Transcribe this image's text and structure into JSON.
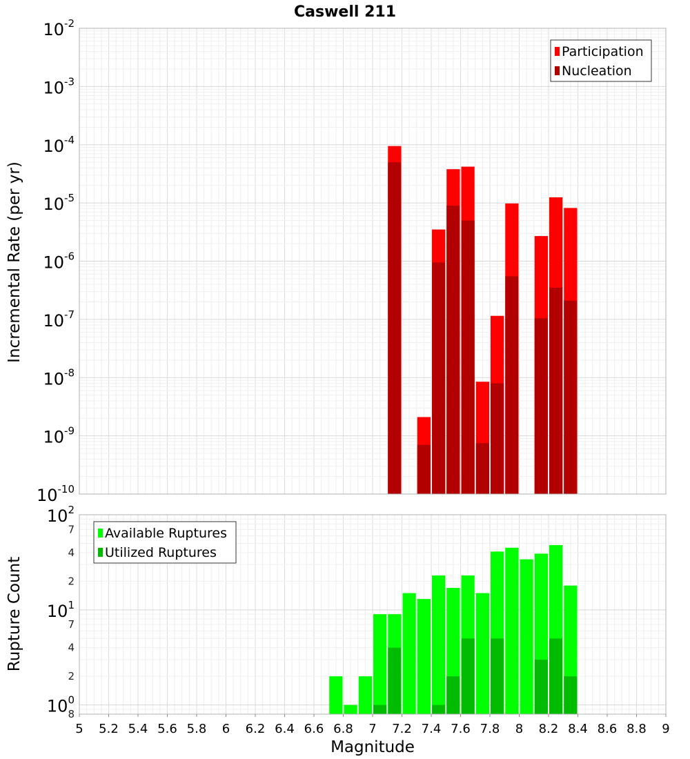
{
  "chart_data": {
    "title": "Caswell 211",
    "xlabel": "Magnitude",
    "xlim": [
      5,
      9
    ],
    "x_ticks": [
      "5",
      "5.2",
      "5.4",
      "5.6",
      "5.8",
      "6",
      "6.2",
      "6.4",
      "6.6",
      "6.8",
      "7",
      "7.2",
      "7.4",
      "7.6",
      "7.8",
      "8",
      "8.2",
      "8.4",
      "8.6",
      "8.8",
      "9"
    ],
    "bin_width": 0.1,
    "grid": true,
    "panels": [
      {
        "type": "bar",
        "ylabel": "Incremental Rate (per yr)",
        "yscale": "log",
        "ylim": [
          1e-10,
          0.01
        ],
        "y_ticks": [
          {
            "value": 1e-10,
            "base": "10",
            "exp": "-10"
          },
          {
            "value": 1e-09,
            "base": "10",
            "exp": "-9"
          },
          {
            "value": 1e-08,
            "base": "10",
            "exp": "-8"
          },
          {
            "value": 1e-07,
            "base": "10",
            "exp": "-7"
          },
          {
            "value": 1e-06,
            "base": "10",
            "exp": "-6"
          },
          {
            "value": 1e-05,
            "base": "10",
            "exp": "-5"
          },
          {
            "value": 0.0001,
            "base": "10",
            "exp": "-4"
          },
          {
            "value": 0.001,
            "base": "10",
            "exp": "-3"
          },
          {
            "value": 0.01,
            "base": "10",
            "exp": "-2"
          }
        ],
        "y_minor_ticks": [],
        "legend_position": "top-right",
        "series": [
          {
            "name": "Participation",
            "color": "#ff0000",
            "x": [
              7.15,
              7.35,
              7.45,
              7.55,
              7.65,
              7.75,
              7.85,
              7.95,
              8.15,
              8.25,
              8.35
            ],
            "values": [
              9.5e-05,
              2.1e-09,
              3.5e-06,
              3.8e-05,
              4.2e-05,
              8.5e-09,
              1.15e-07,
              9.8e-06,
              2.7e-06,
              1.25e-05,
              8.2e-06
            ]
          },
          {
            "name": "Nucleation",
            "color": "#b20000",
            "x": [
              7.15,
              7.35,
              7.45,
              7.55,
              7.65,
              7.75,
              7.85,
              7.95,
              8.15,
              8.25,
              8.35
            ],
            "values": [
              5e-05,
              7e-10,
              9.5e-07,
              9e-06,
              5e-06,
              7.5e-10,
              8e-09,
              5.5e-07,
              1.05e-07,
              3.5e-07,
              2.1e-07
            ]
          }
        ]
      },
      {
        "type": "bar",
        "ylabel": "Rupture Count",
        "yscale": "log",
        "ylim": [
          0.8,
          100
        ],
        "y_ticks": [
          {
            "value": 1,
            "base": "10",
            "exp": "0"
          },
          {
            "value": 10,
            "base": "10",
            "exp": "1"
          },
          {
            "value": 100,
            "base": "10",
            "exp": "2"
          }
        ],
        "y_minor_ticks": [
          {
            "value": 0.8,
            "label": "8"
          },
          {
            "value": 2,
            "label": "2"
          },
          {
            "value": 4,
            "label": "4"
          },
          {
            "value": 7,
            "label": "7"
          },
          {
            "value": 20,
            "label": "2"
          },
          {
            "value": 40,
            "label": "4"
          },
          {
            "value": 70,
            "label": "7"
          }
        ],
        "legend_position": "top-left",
        "series": [
          {
            "name": "Available Ruptures",
            "color": "#00ff00",
            "x": [
              6.75,
              6.85,
              6.95,
              7.05,
              7.15,
              7.25,
              7.35,
              7.45,
              7.55,
              7.65,
              7.75,
              7.85,
              7.95,
              8.05,
              8.15,
              8.25,
              8.35
            ],
            "values": [
              2,
              1,
              2,
              9,
              9,
              15,
              13,
              23,
              17,
              23,
              15,
              41,
              45,
              34,
              39,
              48,
              18
            ]
          },
          {
            "name": "Utilized Ruptures",
            "color": "#00bb00",
            "x": [
              7.05,
              7.15,
              7.45,
              7.55,
              7.65,
              7.85,
              8.15,
              8.25,
              8.35
            ],
            "values": [
              1,
              4,
              1,
              2,
              5,
              5,
              3,
              5,
              2
            ]
          }
        ]
      }
    ]
  }
}
